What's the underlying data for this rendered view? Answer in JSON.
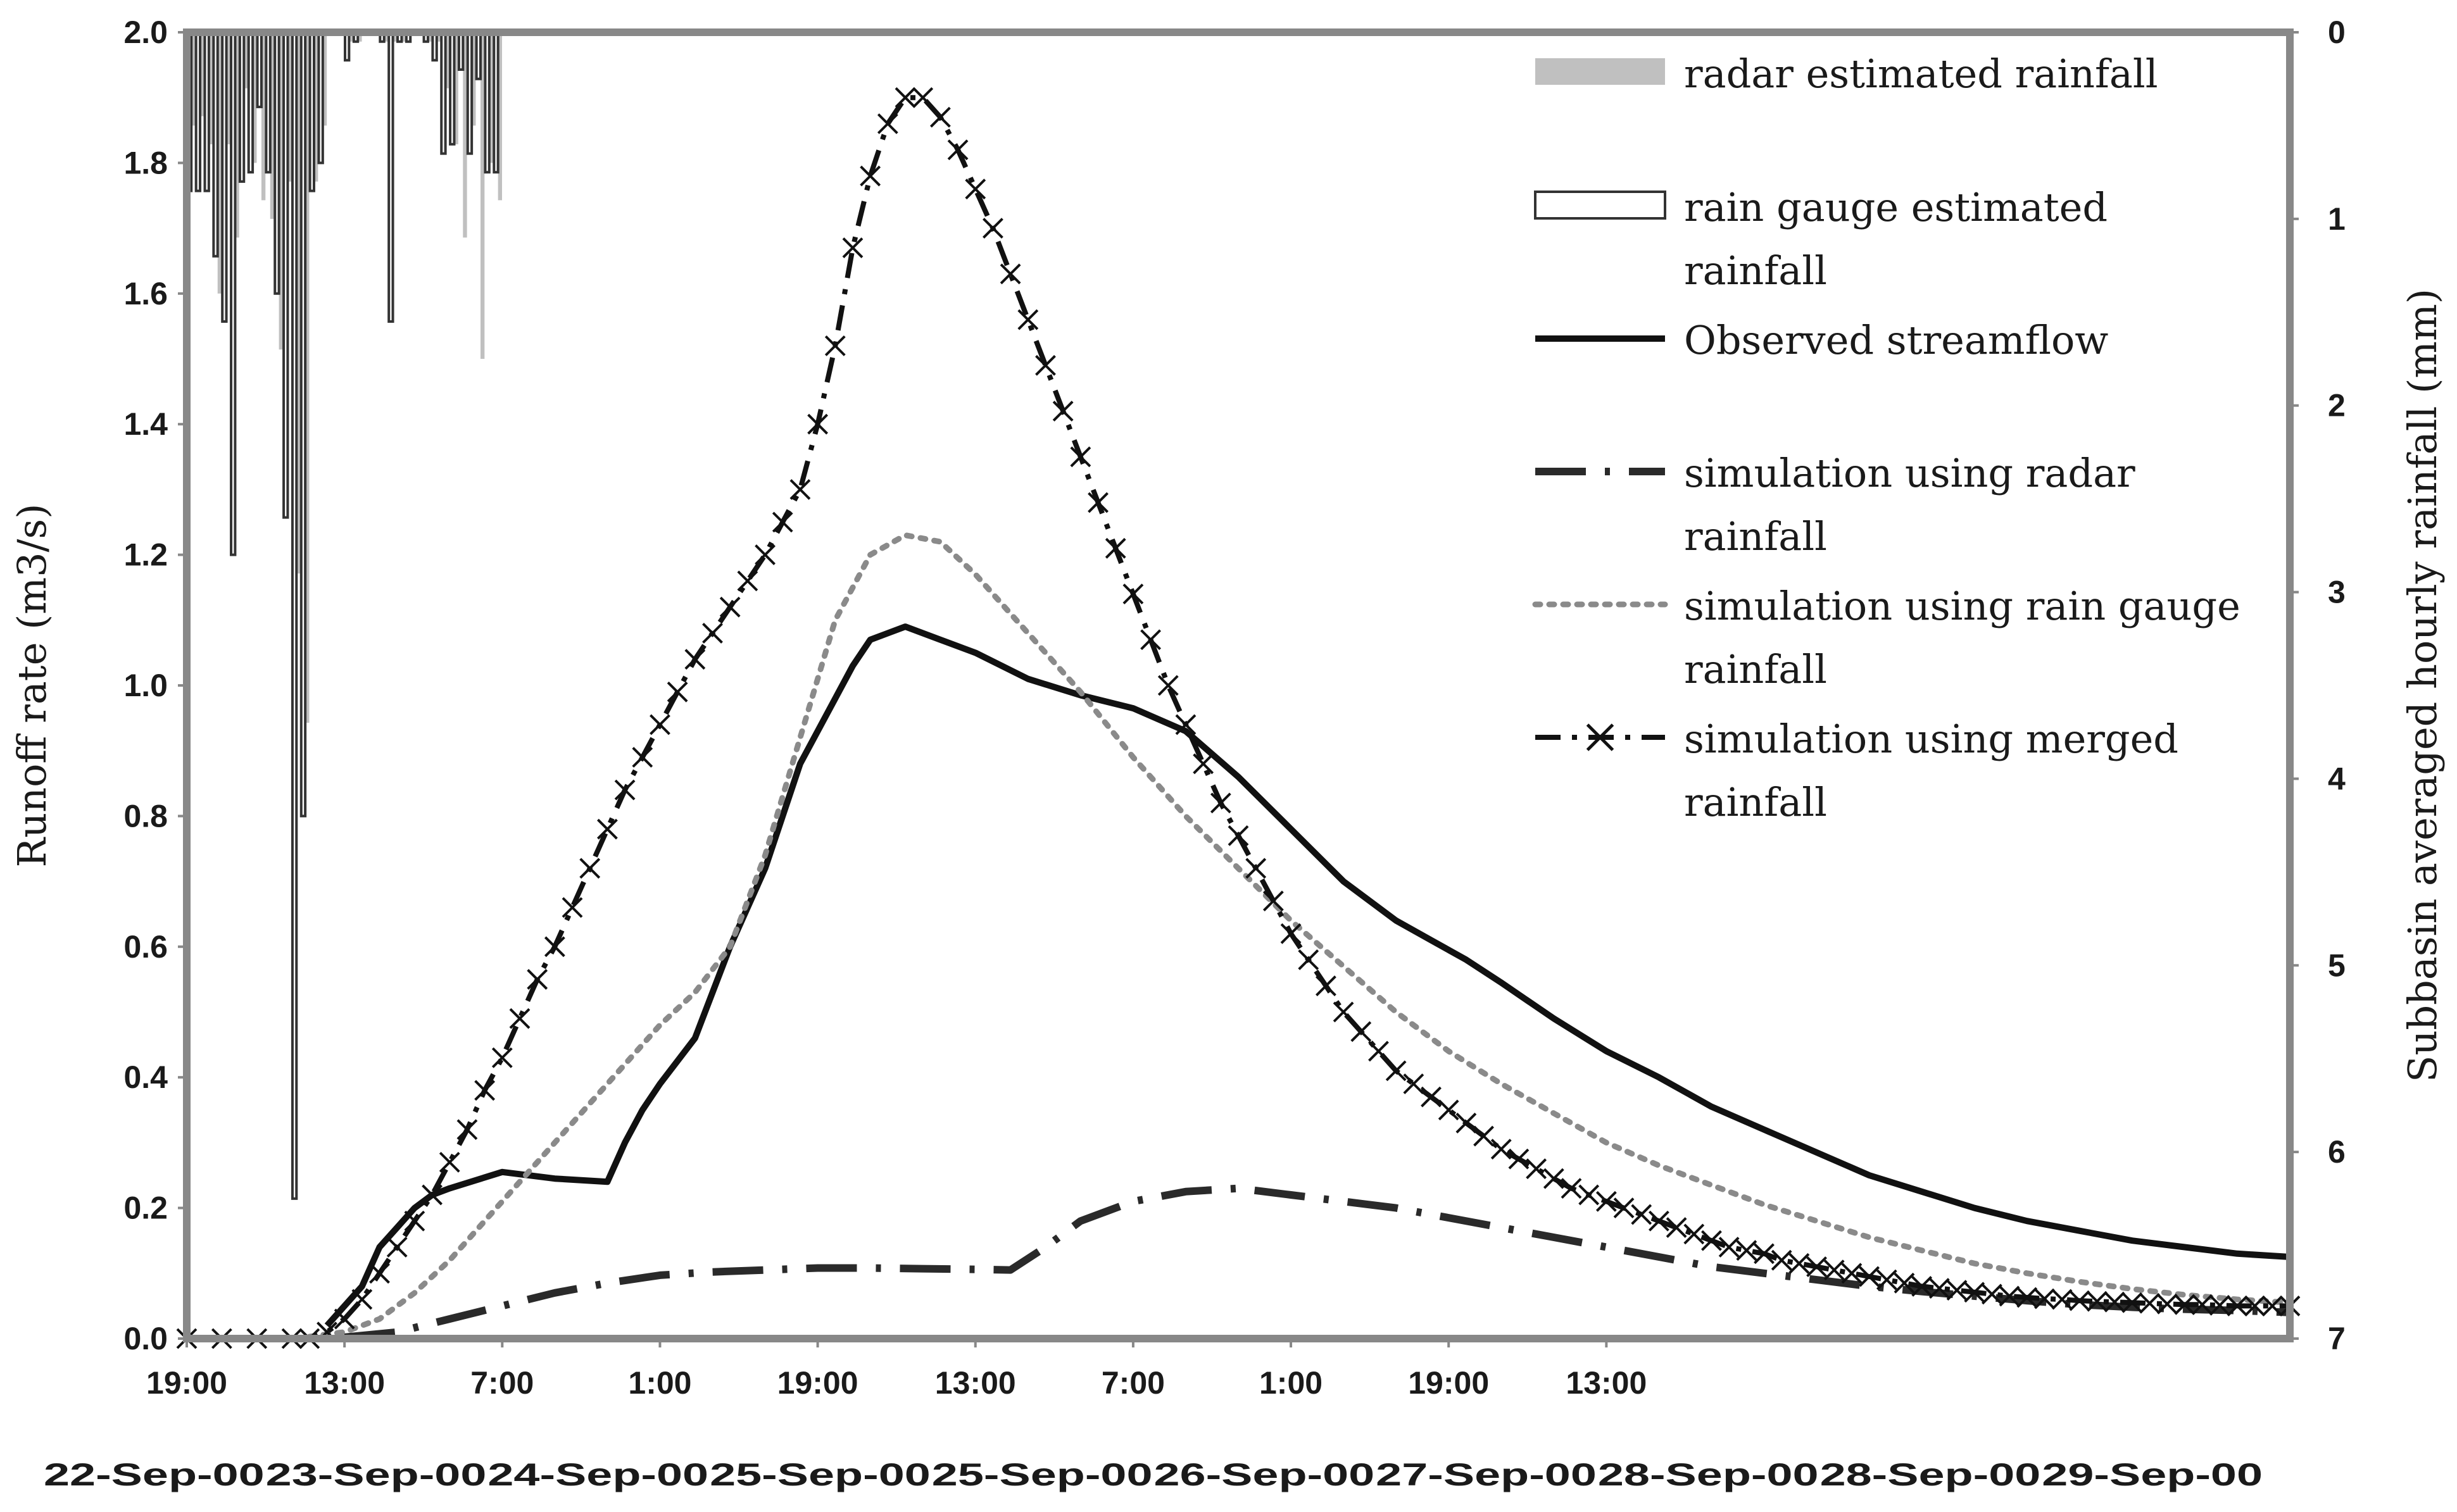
{
  "chart_data": {
    "type": "line",
    "title": "",
    "ylabel": "Runoff rate (m3/s)",
    "y2label": "Subbasin averaged hourly rainfall (mm)",
    "ylim": [
      0,
      2.0
    ],
    "y2lim": [
      0,
      7
    ],
    "y2_inverted": true,
    "y_ticks": [
      "0.0",
      "0.2",
      "0.4",
      "0.6",
      "0.8",
      "1.0",
      "1.2",
      "1.4",
      "1.6",
      "1.8",
      "2.0"
    ],
    "y2_ticks": [
      "0",
      "1",
      "2",
      "3",
      "4",
      "5",
      "6",
      "7"
    ],
    "x_range_hours": [
      0,
      240
    ],
    "x_ticks_time": [
      "19:00",
      "13:00",
      "7:00",
      "1:00",
      "19:00",
      "13:00",
      "7:00",
      "1:00",
      "19:00",
      "13:00"
    ],
    "x_ticks_date": [
      "22-Sep-00",
      "23-Sep-00",
      "24-Sep-00",
      "25-Sep-00",
      "25-Sep-00",
      "26-Sep-00",
      "27-Sep-00",
      "28-Sep-00",
      "28-Sep-00",
      "29-Sep-00"
    ],
    "legend_position": "top-right",
    "legend": [
      {
        "key": "radar",
        "lines": [
          "radar estimated rainfall"
        ]
      },
      {
        "key": "gauge",
        "lines": [
          "rain gauge estimated",
          "rainfall"
        ]
      },
      {
        "key": "observed",
        "lines": [
          "Observed streamflow"
        ]
      },
      {
        "key": "sim_radar",
        "lines": [
          "simulation using radar",
          "rainfall"
        ]
      },
      {
        "key": "sim_gauge",
        "lines": [
          "simulation using rain gauge",
          "rainfall"
        ]
      },
      {
        "key": "sim_merged",
        "lines": [
          "simulation using merged",
          "rainfall"
        ]
      }
    ],
    "rainfall_bars_x_hours": [
      0,
      1,
      2,
      3,
      4,
      5,
      6,
      7,
      8,
      9,
      10,
      11,
      12,
      13,
      14,
      15,
      16,
      17,
      18,
      19,
      20,
      21,
      22,
      23,
      24,
      25,
      26,
      27,
      28,
      29,
      30,
      31,
      32,
      33,
      34,
      35,
      36,
      37,
      38,
      39,
      40,
      41
    ],
    "radar_rainfall_mm": [
      0.5,
      0.45,
      0.6,
      1.4,
      0.6,
      1.1,
      0.3,
      0.7,
      0.9,
      1.0,
      1.7,
      0.8,
      2.9,
      3.7,
      0.8,
      0.5,
      0,
      0,
      0.05,
      0.05,
      0,
      0,
      0.05,
      0.05,
      0.05,
      0,
      0,
      0.05,
      0.05,
      0.3,
      0.6,
      1.1,
      0.5,
      1.75,
      0.7,
      0.9,
      0,
      0,
      0,
      0,
      0,
      0
    ],
    "gauge_rainfall_mm": [
      0.85,
      0.85,
      0.85,
      1.2,
      1.55,
      2.8,
      0.8,
      0.75,
      0.4,
      0.75,
      1.4,
      2.6,
      6.25,
      4.2,
      0.85,
      0.7,
      0,
      0,
      0.15,
      0.05,
      0,
      0,
      0.05,
      1.55,
      0.05,
      0.05,
      0,
      0.05,
      0.15,
      0.65,
      0.6,
      0.2,
      0.65,
      0.25,
      0.75,
      0.75,
      0,
      0,
      0,
      0,
      0,
      0
    ],
    "series": [
      {
        "name": "Observed streamflow",
        "x": [
          16,
          20,
          22,
          24,
          26,
          28,
          30,
          36,
          42,
          48,
          50,
          52,
          54,
          58,
          62,
          66,
          70,
          74,
          76,
          78,
          82,
          86,
          90,
          96,
          102,
          108,
          114,
          120,
          126,
          132,
          138,
          142,
          146,
          150,
          156,
          162,
          168,
          174,
          180,
          186,
          192,
          198,
          204,
          210,
          216,
          222,
          228,
          234,
          240
        ],
        "values": [
          0.02,
          0.08,
          0.14,
          0.17,
          0.2,
          0.22,
          0.23,
          0.255,
          0.245,
          0.24,
          0.3,
          0.35,
          0.39,
          0.46,
          0.6,
          0.72,
          0.88,
          0.98,
          1.03,
          1.07,
          1.09,
          1.07,
          1.05,
          1.01,
          0.985,
          0.965,
          0.93,
          0.86,
          0.78,
          0.7,
          0.64,
          0.61,
          0.58,
          0.545,
          0.49,
          0.44,
          0.4,
          0.355,
          0.32,
          0.285,
          0.25,
          0.225,
          0.2,
          0.18,
          0.165,
          0.15,
          0.14,
          0.13,
          0.125
        ]
      },
      {
        "name": "simulation using radar rainfall",
        "x": [
          18,
          24,
          30,
          36,
          42,
          48,
          54,
          60,
          66,
          72,
          78,
          84,
          90,
          94,
          98,
          102,
          108,
          114,
          120,
          126,
          132,
          138,
          144,
          150,
          156,
          162,
          168,
          174,
          180,
          186,
          192,
          198,
          204,
          210,
          216,
          222,
          228,
          234,
          240
        ],
        "values": [
          0.002,
          0.01,
          0.03,
          0.05,
          0.07,
          0.085,
          0.097,
          0.102,
          0.105,
          0.108,
          0.108,
          0.107,
          0.106,
          0.105,
          0.14,
          0.18,
          0.21,
          0.225,
          0.23,
          0.22,
          0.21,
          0.2,
          0.185,
          0.17,
          0.155,
          0.14,
          0.125,
          0.11,
          0.1,
          0.09,
          0.08,
          0.072,
          0.065,
          0.058,
          0.052,
          0.048,
          0.045,
          0.043,
          0.04
        ]
      },
      {
        "name": "simulation using rain gauge rainfall",
        "x": [
          14,
          18,
          22,
          26,
          30,
          34,
          38,
          42,
          46,
          50,
          54,
          58,
          62,
          66,
          70,
          74,
          78,
          82,
          86,
          90,
          96,
          102,
          108,
          114,
          120,
          126,
          132,
          138,
          144,
          150,
          156,
          162,
          168,
          174,
          180,
          186,
          192,
          198,
          204,
          210,
          216,
          222,
          228,
          234,
          240
        ],
        "values": [
          0.003,
          0.01,
          0.03,
          0.07,
          0.12,
          0.18,
          0.24,
          0.3,
          0.36,
          0.42,
          0.48,
          0.53,
          0.6,
          0.74,
          0.92,
          1.1,
          1.2,
          1.23,
          1.22,
          1.17,
          1.08,
          0.99,
          0.89,
          0.8,
          0.72,
          0.64,
          0.57,
          0.5,
          0.44,
          0.39,
          0.345,
          0.3,
          0.265,
          0.235,
          0.205,
          0.18,
          0.155,
          0.135,
          0.115,
          0.1,
          0.087,
          0.076,
          0.067,
          0.06,
          0.055
        ]
      },
      {
        "name": "simulation using merged rainfall",
        "x": [
          0,
          4,
          8,
          12,
          14,
          16,
          18,
          20,
          22,
          24,
          26,
          28,
          30,
          32,
          34,
          36,
          38,
          40,
          42,
          44,
          46,
          48,
          50,
          52,
          54,
          56,
          58,
          60,
          62,
          64,
          66,
          68,
          70,
          72,
          74,
          76,
          78,
          80,
          82,
          84,
          86,
          88,
          90,
          92,
          94,
          96,
          98,
          100,
          102,
          104,
          106,
          108,
          110,
          112,
          114,
          116,
          118,
          120,
          122,
          124,
          126,
          128,
          130,
          132,
          134,
          136,
          138,
          140,
          142,
          144,
          146,
          148,
          150,
          152,
          154,
          156,
          158,
          160,
          162,
          164,
          166,
          168,
          170,
          172,
          174,
          176,
          178,
          180,
          182,
          184,
          186,
          188,
          190,
          192,
          194,
          196,
          198,
          200,
          202,
          204,
          206,
          208,
          210,
          212,
          214,
          216,
          218,
          220,
          222,
          224,
          226,
          228,
          230,
          232,
          234,
          236,
          238,
          240
        ],
        "values": [
          0.0,
          0.0,
          0.0,
          0.0,
          0.0,
          0.01,
          0.03,
          0.06,
          0.1,
          0.14,
          0.18,
          0.22,
          0.27,
          0.32,
          0.38,
          0.43,
          0.49,
          0.55,
          0.6,
          0.66,
          0.72,
          0.78,
          0.84,
          0.89,
          0.94,
          0.99,
          1.04,
          1.08,
          1.12,
          1.16,
          1.2,
          1.25,
          1.3,
          1.4,
          1.52,
          1.67,
          1.78,
          1.86,
          1.9,
          1.9,
          1.87,
          1.82,
          1.76,
          1.7,
          1.63,
          1.56,
          1.49,
          1.42,
          1.35,
          1.28,
          1.21,
          1.14,
          1.07,
          1.0,
          0.94,
          0.88,
          0.82,
          0.77,
          0.72,
          0.67,
          0.62,
          0.58,
          0.54,
          0.5,
          0.47,
          0.44,
          0.41,
          0.39,
          0.37,
          0.35,
          0.33,
          0.31,
          0.29,
          0.275,
          0.26,
          0.245,
          0.23,
          0.22,
          0.21,
          0.2,
          0.19,
          0.18,
          0.17,
          0.16,
          0.15,
          0.14,
          0.135,
          0.13,
          0.12,
          0.115,
          0.11,
          0.105,
          0.1,
          0.095,
          0.09,
          0.085,
          0.08,
          0.077,
          0.074,
          0.071,
          0.068,
          0.065,
          0.063,
          0.061,
          0.06,
          0.058,
          0.057,
          0.056,
          0.055,
          0.054,
          0.053,
          0.052,
          0.052,
          0.051,
          0.05,
          0.05,
          0.05,
          0.05
        ]
      }
    ]
  }
}
